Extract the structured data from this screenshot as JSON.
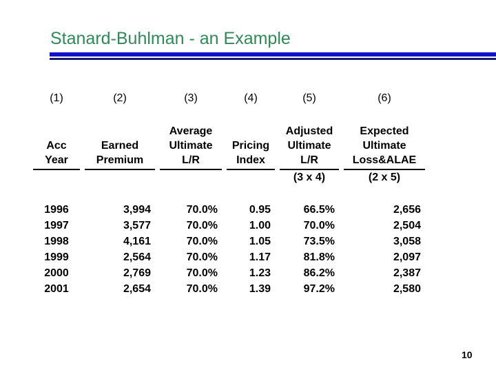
{
  "slide": {
    "title": "Stanard-Buhlman - an Example",
    "page_number": "10",
    "colors": {
      "title_green": "#2e8b57",
      "rule_blue": "#1212cc",
      "rule_navy": "#1a1a66",
      "text": "#000000",
      "background": "#ffffff"
    }
  },
  "table": {
    "column_numbers": [
      "(1)",
      "(2)",
      "(3)",
      "(4)",
      "(5)",
      "(6)"
    ],
    "headers": [
      {
        "lines": [
          "Acc",
          "Year"
        ]
      },
      {
        "lines": [
          "Earned",
          "Premium"
        ]
      },
      {
        "lines": [
          "Average",
          "Ultimate",
          "L/R"
        ]
      },
      {
        "lines": [
          "Pricing",
          "Index"
        ]
      },
      {
        "lines": [
          "Adjusted",
          "Ultimate",
          "L/R"
        ]
      },
      {
        "lines": [
          "Expected",
          "Ultimate",
          "Loss&ALAE"
        ]
      }
    ],
    "formulas": [
      "",
      "",
      "",
      "",
      "(3 x 4)",
      "(2 x 5)"
    ],
    "rows": [
      [
        "1996",
        "3,994",
        "70.0%",
        "0.95",
        "66.5%",
        "2,656"
      ],
      [
        "1997",
        "3,577",
        "70.0%",
        "1.00",
        "70.0%",
        "2,504"
      ],
      [
        "1998",
        "4,161",
        "70.0%",
        "1.05",
        "73.5%",
        "3,058"
      ],
      [
        "1999",
        "2,564",
        "70.0%",
        "1.17",
        "81.8%",
        "2,097"
      ],
      [
        "2000",
        "2,769",
        "70.0%",
        "1.23",
        "86.2%",
        "2,387"
      ],
      [
        "2001",
        "2,654",
        "70.0%",
        "1.39",
        "97.2%",
        "2,580"
      ]
    ]
  }
}
